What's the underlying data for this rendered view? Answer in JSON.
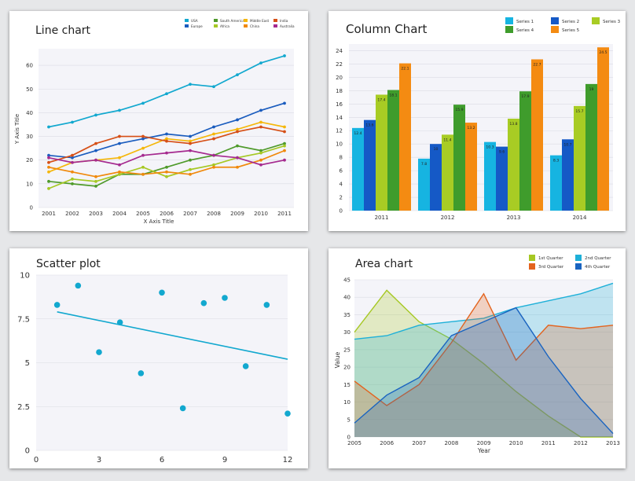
{
  "chart_data": [
    {
      "type": "line",
      "title": "Line chart",
      "xlabel": "X Axis Title",
      "ylabel": "Y Axis Title",
      "x": [
        2001,
        2002,
        2003,
        2004,
        2005,
        2006,
        2007,
        2008,
        2009,
        2010,
        2011
      ],
      "ylim": [
        0,
        67
      ],
      "yticks": [
        0,
        10,
        20,
        30,
        40,
        50,
        60
      ],
      "grid": true,
      "legend_position": "top-right",
      "series": [
        {
          "name": "USA",
          "color": "#12a8cf",
          "values": [
            34,
            36,
            39,
            41,
            44,
            48,
            52,
            51,
            56,
            61,
            64
          ]
        },
        {
          "name": "Europe",
          "color": "#1a5cbe",
          "values": [
            22,
            21,
            24,
            27,
            29,
            31,
            30,
            34,
            37,
            41,
            44
          ]
        },
        {
          "name": "South America",
          "color": "#4f9a2b",
          "values": [
            11,
            10,
            9,
            14,
            14,
            17,
            20,
            22,
            26,
            24,
            27
          ]
        },
        {
          "name": "Africa",
          "color": "#a6c824",
          "values": [
            8,
            12,
            11,
            14,
            17,
            13,
            16,
            18,
            21,
            23,
            26
          ]
        },
        {
          "name": "Middle East",
          "color": "#f5b70a",
          "values": [
            15,
            19,
            20,
            21,
            25,
            29,
            28,
            31,
            33,
            36,
            34
          ]
        },
        {
          "name": "China",
          "color": "#f0890c",
          "values": [
            17,
            15,
            13,
            15,
            14,
            15,
            14,
            17,
            17,
            20,
            24
          ]
        },
        {
          "name": "India",
          "color": "#d64f16",
          "values": [
            19,
            22,
            27,
            30,
            30,
            28,
            27,
            29,
            32,
            34,
            32
          ]
        },
        {
          "name": "Australia",
          "color": "#a52a8f",
          "values": [
            21,
            19,
            20,
            18,
            22,
            23,
            24,
            22,
            21,
            18,
            20
          ]
        }
      ]
    },
    {
      "type": "bar",
      "title": "Column Chart",
      "categories": [
        "2011",
        "2012",
        "2013",
        "2014"
      ],
      "ylim": [
        0,
        25
      ],
      "yticks": [
        0,
        2,
        4,
        6,
        8,
        10,
        12,
        14,
        16,
        18,
        20,
        22,
        24
      ],
      "grid": true,
      "legend_position": "top-right",
      "series": [
        {
          "name": "Series 1",
          "color": "#16b4e1",
          "values": [
            12.4,
            7.8,
            10.3,
            8.3
          ]
        },
        {
          "name": "Series 2",
          "color": "#1559c6",
          "values": [
            13.6,
            10,
            9.6,
            10.7
          ]
        },
        {
          "name": "Series 3",
          "color": "#a8cc24",
          "values": [
            17.4,
            11.4,
            13.8,
            15.7
          ]
        },
        {
          "name": "Series 4",
          "color": "#3f9c2c",
          "values": [
            18.1,
            15.9,
            17.9,
            19
          ]
        },
        {
          "name": "Series 5",
          "color": "#f48b12",
          "values": [
            22.1,
            13.2,
            22.7,
            24.5
          ]
        }
      ]
    },
    {
      "type": "scatter",
      "title": "Scatter plot",
      "xlim": [
        0,
        12
      ],
      "ylim": [
        0,
        10
      ],
      "xticks": [
        0,
        3,
        6,
        9,
        12
      ],
      "yticks": [
        0,
        2.5,
        5,
        7.5,
        10
      ],
      "ytick_labels": [
        "0",
        "2.5",
        "5",
        "7.5",
        "10"
      ],
      "grid": true,
      "color": "#12a8cf",
      "points": [
        {
          "x": 1,
          "y": 8.3
        },
        {
          "x": 2,
          "y": 9.4
        },
        {
          "x": 3,
          "y": 5.6
        },
        {
          "x": 4,
          "y": 7.3
        },
        {
          "x": 5,
          "y": 4.4
        },
        {
          "x": 6,
          "y": 9
        },
        {
          "x": 7,
          "y": 2.4
        },
        {
          "x": 8,
          "y": 8.4
        },
        {
          "x": 9,
          "y": 8.7
        },
        {
          "x": 10,
          "y": 4.8
        },
        {
          "x": 11,
          "y": 8.3
        },
        {
          "x": 12,
          "y": 2.1
        }
      ],
      "trendline": {
        "x": [
          1,
          12
        ],
        "y": [
          7.9,
          5.2
        ]
      }
    },
    {
      "type": "area",
      "title": "Area chart",
      "xlabel": "Year",
      "ylabel": "Value",
      "x": [
        2005,
        2006,
        2007,
        2008,
        2009,
        2010,
        2011,
        2012,
        2013
      ],
      "ylim": [
        0,
        45
      ],
      "yticks": [
        0,
        5,
        10,
        15,
        20,
        25,
        30,
        35,
        40,
        45
      ],
      "grid": true,
      "legend_position": "top-right",
      "series": [
        {
          "name": "1st Quarter",
          "color": "#a6c824",
          "values": [
            30,
            42,
            33,
            28,
            21,
            13,
            6,
            0,
            0
          ]
        },
        {
          "name": "2nd Quarter",
          "color": "#1eb0d8",
          "values": [
            28,
            29,
            32,
            33,
            34,
            37,
            39,
            41,
            44
          ]
        },
        {
          "name": "3rd Quarter",
          "color": "#e3631e",
          "values": [
            16,
            9,
            15,
            27,
            41,
            22,
            32,
            31,
            32
          ]
        },
        {
          "name": "4th Quarter",
          "color": "#1a64c0",
          "values": [
            4,
            12,
            17,
            29,
            33,
            37,
            23,
            11,
            1
          ]
        }
      ]
    }
  ]
}
